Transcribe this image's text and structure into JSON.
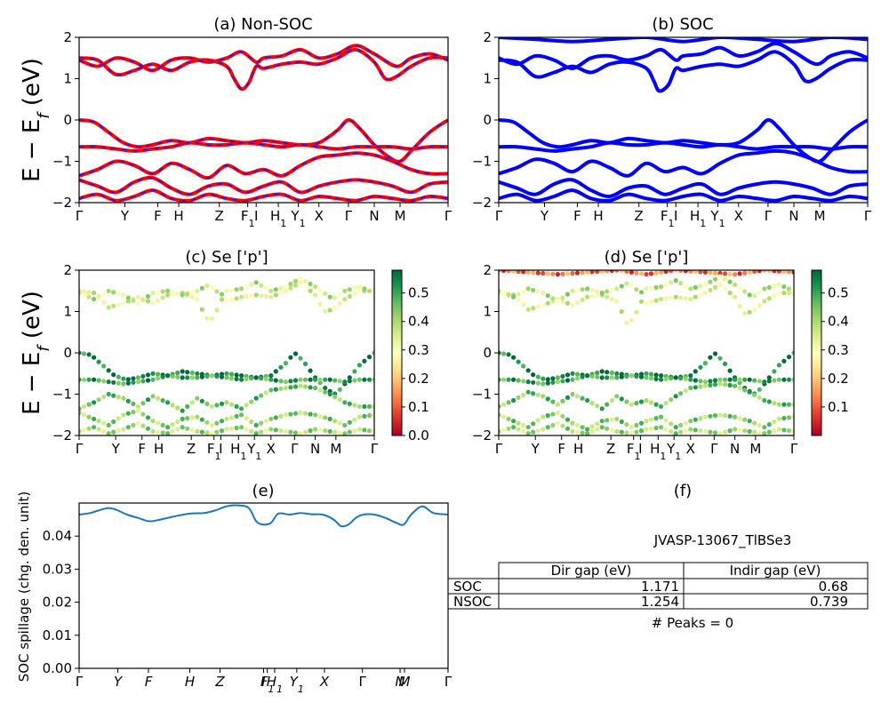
{
  "chart_data": [
    {
      "type": "line",
      "panel": "a",
      "title": "(a) Non-SOC",
      "ylabel": "E − E_f (eV)",
      "ylim": [
        -2,
        2
      ],
      "yticks": [
        "−2",
        "−1",
        "0",
        "1",
        "2"
      ],
      "kpath_labels": [
        "Γ",
        "Y",
        "F",
        "H",
        "Z",
        "F1",
        "I",
        "H1",
        "Y1",
        "X",
        "Γ",
        "N",
        "M",
        "Γ"
      ],
      "kpath_positions": [
        0,
        0.124,
        0.213,
        0.27,
        0.38,
        0.457,
        0.48,
        0.54,
        0.594,
        0.65,
        0.73,
        0.8,
        0.87,
        1.0
      ],
      "line_style": "red solid with blue dashes",
      "bands": [
        {
          "name": "cb1",
          "x": [
            0,
            0.05,
            0.1,
            0.15,
            0.2,
            0.25,
            0.3,
            0.35,
            0.4,
            0.42,
            0.44,
            0.46,
            0.48,
            0.5,
            0.55,
            0.6,
            0.65,
            0.7,
            0.75,
            0.8,
            0.83,
            0.86,
            0.9,
            0.95,
            1.0
          ],
          "y": [
            1.5,
            1.45,
            1.1,
            1.2,
            1.35,
            1.2,
            1.4,
            1.45,
            1.3,
            1.0,
            0.75,
            0.9,
            1.3,
            1.25,
            1.35,
            1.4,
            1.35,
            1.5,
            1.7,
            1.4,
            1.0,
            1.05,
            1.3,
            1.5,
            1.5
          ]
        },
        {
          "name": "cb2",
          "x": [
            0,
            0.05,
            0.1,
            0.15,
            0.2,
            0.25,
            0.3,
            0.35,
            0.4,
            0.44,
            0.48,
            0.5,
            0.55,
            0.6,
            0.65,
            0.7,
            0.75,
            0.8,
            0.86,
            0.9,
            0.95,
            1.0
          ],
          "y": [
            1.45,
            1.3,
            1.5,
            1.4,
            1.2,
            1.45,
            1.5,
            1.4,
            1.5,
            1.65,
            1.4,
            1.5,
            1.55,
            1.7,
            1.5,
            1.6,
            1.8,
            1.6,
            1.3,
            1.5,
            1.6,
            1.45
          ]
        },
        {
          "name": "vb1",
          "x": [
            0,
            0.04,
            0.08,
            0.12,
            0.16,
            0.2,
            0.25,
            0.3,
            0.35,
            0.4,
            0.45,
            0.5,
            0.55,
            0.6,
            0.65,
            0.7,
            0.73,
            0.76,
            0.8,
            0.84,
            0.87,
            0.9,
            0.95,
            1.0
          ],
          "y": [
            0.0,
            -0.05,
            -0.3,
            -0.55,
            -0.65,
            -0.6,
            -0.5,
            -0.55,
            -0.45,
            -0.5,
            -0.55,
            -0.5,
            -0.55,
            -0.6,
            -0.55,
            -0.25,
            0.0,
            -0.2,
            -0.6,
            -0.9,
            -1.0,
            -0.75,
            -0.3,
            0.0
          ]
        },
        {
          "name": "vb2",
          "x": [
            0,
            0.05,
            0.1,
            0.15,
            0.2,
            0.25,
            0.3,
            0.35,
            0.4,
            0.45,
            0.5,
            0.55,
            0.6,
            0.65,
            0.7,
            0.75,
            0.8,
            0.85,
            0.9,
            0.95,
            1.0
          ],
          "y": [
            -0.65,
            -0.65,
            -0.7,
            -0.75,
            -0.7,
            -0.65,
            -0.55,
            -0.6,
            -0.6,
            -0.55,
            -0.6,
            -0.65,
            -0.6,
            -0.65,
            -0.7,
            -0.65,
            -0.65,
            -0.65,
            -0.7,
            -0.65,
            -0.65
          ]
        },
        {
          "name": "vb3",
          "x": [
            0,
            0.05,
            0.1,
            0.15,
            0.2,
            0.25,
            0.3,
            0.35,
            0.4,
            0.45,
            0.5,
            0.55,
            0.6,
            0.65,
            0.7,
            0.75,
            0.8,
            0.85,
            0.9,
            0.95,
            1.0
          ],
          "y": [
            -1.35,
            -1.2,
            -1.0,
            -1.1,
            -1.3,
            -1.05,
            -1.2,
            -1.4,
            -1.1,
            -1.3,
            -1.2,
            -1.35,
            -1.1,
            -0.9,
            -0.85,
            -0.8,
            -0.85,
            -1.0,
            -1.2,
            -1.3,
            -1.3
          ]
        },
        {
          "name": "vb4",
          "x": [
            0,
            0.05,
            0.1,
            0.15,
            0.2,
            0.25,
            0.3,
            0.35,
            0.4,
            0.45,
            0.5,
            0.55,
            0.6,
            0.65,
            0.7,
            0.75,
            0.8,
            0.85,
            0.9,
            0.95,
            1.0
          ],
          "y": [
            -1.45,
            -1.6,
            -1.75,
            -1.5,
            -1.4,
            -1.65,
            -1.8,
            -1.6,
            -1.55,
            -1.75,
            -1.6,
            -1.5,
            -1.75,
            -1.6,
            -1.5,
            -1.45,
            -1.5,
            -1.6,
            -1.75,
            -1.55,
            -1.5
          ]
        },
        {
          "name": "vb5",
          "x": [
            0,
            0.05,
            0.1,
            0.15,
            0.2,
            0.25,
            0.3,
            0.35,
            0.4,
            0.45,
            0.5,
            0.55,
            0.6,
            0.65,
            0.7,
            0.75,
            0.8,
            0.85,
            0.9,
            0.95,
            1.0
          ],
          "y": [
            -1.9,
            -1.8,
            -1.95,
            -1.85,
            -1.7,
            -1.9,
            -1.95,
            -1.8,
            -1.9,
            -1.95,
            -1.85,
            -1.8,
            -1.95,
            -1.85,
            -1.9,
            -1.95,
            -1.85,
            -1.9,
            -1.95,
            -1.85,
            -1.9
          ]
        }
      ]
    },
    {
      "type": "line",
      "panel": "b",
      "title": "(b) SOC",
      "ylim": [
        -2,
        2
      ],
      "yticks": [
        "−2",
        "−1",
        "0",
        "1",
        "2"
      ],
      "kpath_labels": [
        "Γ",
        "Y",
        "F",
        "H",
        "Z",
        "F1",
        "I",
        "H1",
        "Y1",
        "X",
        "Γ",
        "N",
        "M",
        "Γ"
      ],
      "kpath_positions": [
        0,
        0.124,
        0.213,
        0.27,
        0.38,
        0.457,
        0.48,
        0.54,
        0.594,
        0.65,
        0.73,
        0.8,
        0.87,
        1.0
      ],
      "line_color": "#0000ff",
      "bands": [
        {
          "name": "cb0",
          "x": [
            0,
            0.1,
            0.2,
            0.3,
            0.4,
            0.5,
            0.6,
            0.7,
            0.8,
            0.9,
            1.0
          ],
          "y": [
            2.0,
            1.95,
            1.9,
            1.95,
            2.0,
            1.9,
            2.0,
            1.95,
            1.9,
            2.0,
            1.95
          ]
        },
        {
          "name": "cb1",
          "x": [
            0,
            0.05,
            0.1,
            0.15,
            0.2,
            0.25,
            0.3,
            0.35,
            0.4,
            0.42,
            0.435,
            0.46,
            0.48,
            0.5,
            0.55,
            0.6,
            0.65,
            0.7,
            0.75,
            0.8,
            0.83,
            0.86,
            0.9,
            0.95,
            1.0
          ],
          "y": [
            1.45,
            1.4,
            1.05,
            1.15,
            1.3,
            1.15,
            1.35,
            1.4,
            1.25,
            0.95,
            0.7,
            0.85,
            1.25,
            1.2,
            1.3,
            1.35,
            1.3,
            1.45,
            1.65,
            1.35,
            0.95,
            1.0,
            1.25,
            1.45,
            1.45
          ]
        },
        {
          "name": "cb2",
          "x": [
            0,
            0.05,
            0.1,
            0.15,
            0.2,
            0.25,
            0.3,
            0.35,
            0.4,
            0.44,
            0.48,
            0.5,
            0.55,
            0.6,
            0.65,
            0.7,
            0.75,
            0.8,
            0.86,
            0.9,
            0.95,
            1.0
          ],
          "y": [
            1.5,
            1.35,
            1.55,
            1.45,
            1.25,
            1.5,
            1.55,
            1.45,
            1.55,
            1.7,
            1.45,
            1.55,
            1.6,
            1.75,
            1.55,
            1.65,
            1.85,
            1.65,
            1.35,
            1.55,
            1.65,
            1.5
          ]
        },
        {
          "name": "vb1",
          "x": [
            0,
            0.04,
            0.08,
            0.12,
            0.16,
            0.2,
            0.25,
            0.3,
            0.35,
            0.4,
            0.45,
            0.5,
            0.55,
            0.6,
            0.65,
            0.7,
            0.73,
            0.76,
            0.8,
            0.84,
            0.87,
            0.9,
            0.95,
            1.0
          ],
          "y": [
            0.0,
            -0.05,
            -0.3,
            -0.55,
            -0.65,
            -0.6,
            -0.5,
            -0.55,
            -0.45,
            -0.5,
            -0.55,
            -0.5,
            -0.55,
            -0.6,
            -0.55,
            -0.25,
            0.0,
            -0.2,
            -0.6,
            -0.9,
            -1.0,
            -0.75,
            -0.3,
            0.0
          ]
        },
        {
          "name": "vb2",
          "x": [
            0,
            0.05,
            0.1,
            0.15,
            0.2,
            0.25,
            0.3,
            0.35,
            0.4,
            0.45,
            0.5,
            0.55,
            0.6,
            0.65,
            0.7,
            0.75,
            0.8,
            0.85,
            0.9,
            0.95,
            1.0
          ],
          "y": [
            -0.65,
            -0.65,
            -0.7,
            -0.75,
            -0.7,
            -0.65,
            -0.55,
            -0.6,
            -0.6,
            -0.55,
            -0.6,
            -0.65,
            -0.6,
            -0.65,
            -0.7,
            -0.65,
            -0.65,
            -0.65,
            -0.7,
            -0.65,
            -0.65
          ]
        },
        {
          "name": "vb3",
          "x": [
            0,
            0.05,
            0.1,
            0.15,
            0.2,
            0.25,
            0.3,
            0.35,
            0.4,
            0.45,
            0.5,
            0.55,
            0.6,
            0.65,
            0.7,
            0.75,
            0.8,
            0.85,
            0.9,
            0.95,
            1.0
          ],
          "y": [
            -1.3,
            -1.15,
            -0.95,
            -1.05,
            -1.25,
            -1.0,
            -1.15,
            -1.35,
            -1.05,
            -1.25,
            -1.15,
            -1.3,
            -1.05,
            -0.85,
            -0.8,
            -0.75,
            -0.8,
            -0.95,
            -1.15,
            -1.25,
            -1.25
          ]
        },
        {
          "name": "vb4",
          "x": [
            0,
            0.05,
            0.1,
            0.15,
            0.2,
            0.25,
            0.3,
            0.35,
            0.4,
            0.45,
            0.5,
            0.55,
            0.6,
            0.65,
            0.7,
            0.75,
            0.8,
            0.85,
            0.9,
            0.95,
            1.0
          ],
          "y": [
            -1.5,
            -1.65,
            -1.8,
            -1.55,
            -1.45,
            -1.7,
            -1.85,
            -1.65,
            -1.6,
            -1.8,
            -1.65,
            -1.55,
            -1.8,
            -1.65,
            -1.55,
            -1.5,
            -1.55,
            -1.65,
            -1.8,
            -1.6,
            -1.55
          ]
        },
        {
          "name": "vb5",
          "x": [
            0,
            0.05,
            0.1,
            0.15,
            0.2,
            0.25,
            0.3,
            0.35,
            0.4,
            0.45,
            0.5,
            0.55,
            0.6,
            0.65,
            0.7,
            0.75,
            0.8,
            0.85,
            0.9,
            0.95,
            1.0
          ],
          "y": [
            -1.9,
            -1.8,
            -1.95,
            -1.85,
            -1.7,
            -1.9,
            -1.95,
            -1.8,
            -1.9,
            -1.95,
            -1.85,
            -1.8,
            -1.95,
            -1.85,
            -1.9,
            -1.95,
            -1.85,
            -1.9,
            -1.95,
            -1.85,
            -1.9
          ]
        }
      ]
    },
    {
      "type": "scatter",
      "panel": "c",
      "title": "(c)  Se ['p']",
      "ylabel": "E − E_f (eV)",
      "ylim": [
        -2,
        2
      ],
      "yticks": [
        "−2",
        "−1",
        "0",
        "1",
        "2"
      ],
      "kpath_labels": [
        "Γ",
        "Y",
        "F",
        "H",
        "Z",
        "F1",
        "I",
        "H1",
        "Y1",
        "X",
        "Γ",
        "N",
        "M",
        "Γ"
      ],
      "kpath_positions": [
        0,
        0.124,
        0.213,
        0.27,
        0.38,
        0.457,
        0.48,
        0.54,
        0.594,
        0.65,
        0.73,
        0.8,
        0.87,
        1.0
      ],
      "colormap": "RdYlGn",
      "colorbar_range": [
        0.0,
        0.58
      ],
      "colorbar_ticks": [
        "0.0",
        "0.1",
        "0.2",
        "0.3",
        "0.4",
        "0.5"
      ],
      "band_weights": {
        "cb1": 0.33,
        "cb2": 0.36,
        "vb1": 0.55,
        "vb2": 0.5,
        "vb3": 0.45,
        "vb4": 0.42,
        "vb5": 0.4
      }
    },
    {
      "type": "scatter",
      "panel": "d",
      "title": "(d) Se ['p']",
      "ylim": [
        -2,
        2
      ],
      "yticks": [
        "−2",
        "−1",
        "0",
        "1",
        "2"
      ],
      "kpath_labels": [
        "Γ",
        "Y",
        "F",
        "H",
        "Z",
        "F1",
        "I",
        "H1",
        "Y1",
        "X",
        "Γ",
        "N",
        "M",
        "Γ"
      ],
      "kpath_positions": [
        0,
        0.124,
        0.213,
        0.27,
        0.38,
        0.457,
        0.48,
        0.54,
        0.594,
        0.65,
        0.73,
        0.8,
        0.87,
        1.0
      ],
      "colormap": "RdYlGn",
      "colorbar_range": [
        0.0,
        0.58
      ],
      "colorbar_ticks": [
        "0.1",
        "0.2",
        "0.3",
        "0.4",
        "0.5"
      ],
      "band_weights": {
        "cb0": 0.12,
        "cb1": 0.33,
        "cb2": 0.37,
        "vb1": 0.55,
        "vb2": 0.5,
        "vb3": 0.45,
        "vb4": 0.42,
        "vb5": 0.4
      }
    },
    {
      "type": "line",
      "panel": "e",
      "title": "(e)",
      "ylabel": "SOC spillage (chg. den. unit)",
      "ylim": [
        0.0,
        0.05
      ],
      "yticks": [
        "0.00",
        "0.01",
        "0.02",
        "0.03",
        "0.04"
      ],
      "ytick_values": [
        0.0,
        0.01,
        0.02,
        0.03,
        0.04
      ],
      "kpath_labels": [
        "Γ",
        "Y",
        "F",
        "H",
        "Z",
        "I",
        "F1",
        "H1",
        "Y1",
        "X",
        "Γ",
        "N",
        "M",
        "Γ"
      ],
      "kpath_positions": [
        0,
        0.105,
        0.188,
        0.3,
        0.382,
        0.5,
        0.51,
        0.53,
        0.59,
        0.665,
        0.768,
        0.87,
        0.882,
        1.0
      ],
      "line_color": "#1f77b4",
      "x": [
        0,
        0.03,
        0.06,
        0.08,
        0.1,
        0.13,
        0.16,
        0.19,
        0.22,
        0.26,
        0.3,
        0.34,
        0.37,
        0.4,
        0.43,
        0.46,
        0.48,
        0.5,
        0.52,
        0.54,
        0.57,
        0.6,
        0.63,
        0.66,
        0.69,
        0.71,
        0.73,
        0.75,
        0.77,
        0.8,
        0.83,
        0.86,
        0.88,
        0.9,
        0.93,
        0.96,
        1.0
      ],
      "y": [
        0.0465,
        0.047,
        0.048,
        0.0485,
        0.048,
        0.0465,
        0.0455,
        0.0445,
        0.045,
        0.046,
        0.0468,
        0.047,
        0.0478,
        0.049,
        0.0493,
        0.0485,
        0.0445,
        0.0435,
        0.044,
        0.0468,
        0.0465,
        0.047,
        0.0466,
        0.0465,
        0.045,
        0.043,
        0.0435,
        0.0455,
        0.0465,
        0.0465,
        0.0455,
        0.044,
        0.0435,
        0.0465,
        0.049,
        0.047,
        0.0465
      ]
    },
    {
      "type": "table",
      "panel": "f",
      "title": "(f)",
      "subtitle": "JVASP-13067_TlBSe3",
      "columns": [
        "Dir gap (eV)",
        "Indir gap (eV)"
      ],
      "rows": [
        {
          "label": "SOC",
          "values": [
            "1.171",
            "0.68"
          ]
        },
        {
          "label": "NSOC",
          "values": [
            "1.254",
            "0.739"
          ]
        }
      ],
      "footer": "# Peaks = 0"
    }
  ]
}
